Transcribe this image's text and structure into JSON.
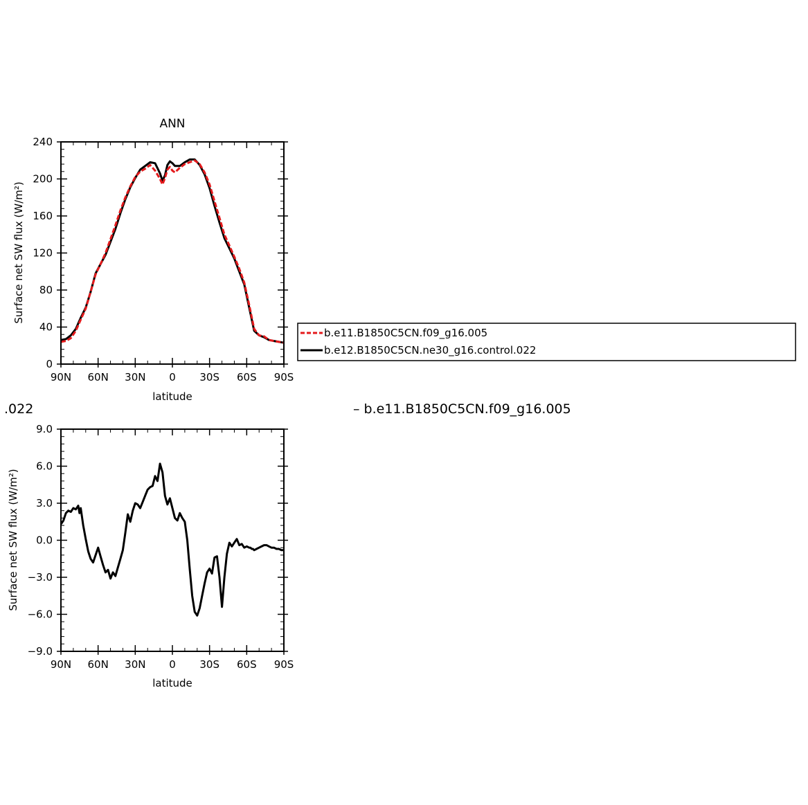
{
  "chart_data": [
    {
      "type": "line",
      "title": "ANN",
      "xlabel": "latitude",
      "ylabel": "Surface net SW flux (W/m²)",
      "xlim": [
        90,
        -90
      ],
      "ylim": [
        0,
        240
      ],
      "x_ticks": [
        90,
        60,
        30,
        0,
        -30,
        -60,
        -90
      ],
      "x_tick_labels": [
        "90N",
        "60N",
        "30N",
        "0",
        "30S",
        "60S",
        "90S"
      ],
      "y_ticks": [
        0,
        40,
        80,
        120,
        160,
        200,
        240
      ],
      "y_tick_labels": [
        "0",
        "40",
        "80",
        "120",
        "160",
        "200",
        "240"
      ],
      "grid": false,
      "legend_position": "right",
      "series": [
        {
          "name": "b.e11.B1850C5CN.f09_g16.005",
          "color": "#e41a1c",
          "dash": true,
          "x": [
            90,
            86,
            82,
            78,
            74,
            70,
            66,
            62,
            58,
            54,
            50,
            46,
            42,
            38,
            34,
            30,
            26,
            22,
            18,
            14,
            10,
            8,
            6,
            4,
            2,
            0,
            -2,
            -6,
            -10,
            -14,
            -18,
            -22,
            -26,
            -30,
            -34,
            -38,
            -42,
            -46,
            -50,
            -54,
            -58,
            -62,
            -66,
            -70,
            -74,
            -78,
            -82,
            -86,
            -90
          ],
          "y": [
            24,
            25,
            28,
            36,
            48,
            60,
            78,
            97,
            108,
            120,
            135,
            150,
            166,
            180,
            192,
            202,
            208,
            211,
            215,
            209,
            200,
            194,
            201,
            210,
            213,
            209,
            207,
            212,
            216,
            218,
            220,
            216,
            207,
            194,
            176,
            158,
            140,
            128,
            116,
            103,
            88,
            64,
            38,
            31,
            30,
            26,
            25,
            24,
            23
          ]
        },
        {
          "name": "b.e12.B1850C5CN.ne30_g16.control.022",
          "color": "#000000",
          "dash": false,
          "x": [
            90,
            86,
            82,
            78,
            74,
            70,
            66,
            62,
            58,
            54,
            50,
            46,
            42,
            38,
            34,
            30,
            26,
            22,
            18,
            14,
            10,
            8,
            6,
            4,
            2,
            0,
            -2,
            -6,
            -10,
            -14,
            -18,
            -22,
            -26,
            -30,
            -34,
            -38,
            -42,
            -46,
            -50,
            -54,
            -58,
            -62,
            -66,
            -70,
            -74,
            -78,
            -82,
            -86,
            -90
          ],
          "y": [
            26,
            27,
            31,
            38,
            50,
            61,
            78,
            98,
            108,
            118,
            132,
            146,
            163,
            178,
            191,
            201,
            210,
            214,
            218,
            217,
            206,
            198,
            204,
            215,
            219,
            217,
            214,
            214,
            218,
            221,
            221,
            215,
            205,
            190,
            171,
            153,
            136,
            125,
            114,
            100,
            86,
            61,
            36,
            31,
            29,
            26,
            25,
            24,
            23
          ]
        }
      ]
    },
    {
      "type": "line",
      "title": "",
      "xlabel": "latitude",
      "ylabel": "Surface net SW flux (W/m²)",
      "xlim": [
        90,
        -90
      ],
      "ylim": [
        -9,
        9
      ],
      "x_ticks": [
        90,
        60,
        30,
        0,
        -30,
        -60,
        -90
      ],
      "x_tick_labels": [
        "90N",
        "60N",
        "30N",
        "0",
        "30S",
        "60S",
        "90S"
      ],
      "y_ticks": [
        -9,
        -6,
        -3,
        0,
        3,
        6,
        9
      ],
      "y_tick_labels": [
        "−9.0",
        "−6.0",
        "−3.0",
        "0.0",
        "3.0",
        "6.0",
        "9.0"
      ],
      "grid": false,
      "series": [
        {
          "color": "#000000",
          "dash": false,
          "x": [
            90,
            88,
            86,
            84,
            82,
            80,
            78,
            76,
            75,
            74,
            72,
            70,
            68,
            66,
            64,
            62,
            60,
            58,
            56,
            54,
            52,
            50,
            48,
            46,
            44,
            42,
            40,
            38,
            36,
            34,
            32,
            30,
            28,
            26,
            24,
            22,
            20,
            18,
            16,
            14,
            12,
            10,
            8,
            6,
            4,
            2,
            0,
            -2,
            -4,
            -6,
            -8,
            -10,
            -12,
            -14,
            -16,
            -18,
            -20,
            -22,
            -24,
            -26,
            -28,
            -30,
            -32,
            -34,
            -36,
            -38,
            -40,
            -42,
            -44,
            -46,
            -48,
            -50,
            -52,
            -54,
            -56,
            -58,
            -60,
            -62,
            -63,
            -64,
            -65,
            -66,
            -68,
            -70,
            -72,
            -74,
            -76,
            -78,
            -80,
            -82,
            -84,
            -86,
            -88,
            -90
          ],
          "y": [
            1.3,
            1.6,
            2.2,
            2.4,
            2.3,
            2.6,
            2.5,
            2.8,
            2.2,
            2.6,
            1.2,
            0.1,
            -0.9,
            -1.5,
            -1.8,
            -1.2,
            -0.6,
            -1.3,
            -2.0,
            -2.6,
            -2.4,
            -3.1,
            -2.6,
            -2.9,
            -2.2,
            -1.5,
            -0.8,
            0.6,
            2.1,
            1.5,
            2.4,
            3.0,
            2.9,
            2.6,
            3.1,
            3.6,
            4.1,
            4.3,
            4.4,
            5.2,
            4.8,
            6.2,
            5.5,
            3.6,
            2.9,
            3.4,
            2.6,
            1.8,
            1.6,
            2.2,
            1.8,
            1.5,
            0.0,
            -2.3,
            -4.5,
            -5.8,
            -6.1,
            -5.5,
            -4.5,
            -3.5,
            -2.6,
            -2.3,
            -2.7,
            -1.4,
            -1.3,
            -3.0,
            -5.4,
            -3.0,
            -1.1,
            -0.2,
            -0.5,
            -0.2,
            0.1,
            -0.4,
            -0.3,
            -0.6,
            -0.5,
            -0.6,
            -0.6,
            -0.7,
            -0.7,
            -0.8,
            -0.7,
            -0.6,
            -0.5,
            -0.4,
            -0.4,
            -0.5,
            -0.6,
            -0.6,
            -0.7,
            -0.7,
            -0.8,
            -0.8
          ]
        }
      ]
    }
  ],
  "legend": {
    "entries": [
      "b.e11.B1850C5CN.f09_g16.005",
      "b.e12.B1850C5CN.ne30_g16.control.022"
    ]
  },
  "fragments": {
    "left": ".022",
    "right": "– b.e11.B1850C5CN.f09_g16.005"
  }
}
